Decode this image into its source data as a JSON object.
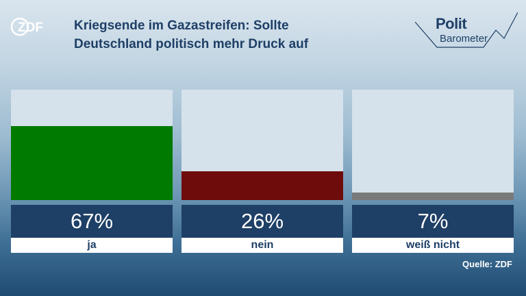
{
  "header": {
    "logo_text": "ZDF",
    "title_line1": "Kriegsende im Gazastreifen: Sollte",
    "title_line2": "Deutschland politisch mehr Druck auf",
    "brand_line1": "Polit",
    "brand_line2": "Barometer"
  },
  "chart_data": {
    "type": "bar",
    "title": "Kriegsende im Gazastreifen: Sollte Deutschland politisch mehr Druck auf",
    "categories": [
      "ja",
      "nein",
      "weiß nicht"
    ],
    "values": [
      67,
      26,
      7
    ],
    "value_labels": [
      "67%",
      "26%",
      "7%"
    ],
    "ylim": [
      0,
      100
    ],
    "colors": [
      "#007a00",
      "#6e0c0c",
      "#7a7a7a"
    ],
    "grid": false,
    "legend": "none"
  },
  "footer": {
    "source": "Quelle: ZDF"
  }
}
